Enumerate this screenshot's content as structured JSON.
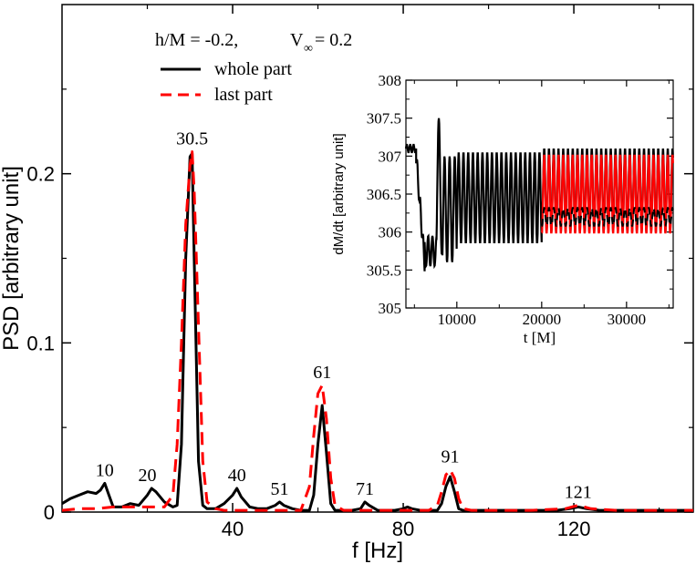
{
  "chart_data": [
    {
      "type": "line",
      "xlabel": "f [Hz]",
      "ylabel": "PSD [arbitrary unit]",
      "xlim": [
        0,
        148
      ],
      "ylim": [
        0,
        0.3
      ],
      "xticks": [
        40,
        80,
        120
      ],
      "yticks": [
        0,
        0.1,
        0.2
      ],
      "ytick_labels": [
        "0",
        "0.1",
        "0.2"
      ],
      "annotation": {
        "h_text": "h/M = -0.2,",
        "v_text": "V",
        "v_sub": "∞",
        "v_value": " = 0.2"
      },
      "legend": {
        "position": "top-left"
      },
      "series": [
        {
          "name": "whole part",
          "color": "#000000",
          "style": "solid",
          "x": [
            0,
            2,
            4,
            6,
            8,
            9,
            10,
            11,
            12,
            14,
            16,
            18,
            20,
            21,
            22,
            24,
            26,
            27,
            28,
            29,
            30,
            30.5,
            31,
            32,
            33,
            34,
            36,
            38,
            40,
            41,
            42,
            44,
            46,
            48,
            50,
            51,
            52,
            54,
            56,
            58,
            59,
            60,
            61,
            62,
            63,
            64,
            66,
            68,
            70,
            71,
            72,
            74,
            76,
            78,
            80,
            81,
            82,
            84,
            86,
            88,
            89,
            90,
            91,
            92,
            93,
            94,
            96,
            100,
            104,
            108,
            112,
            116,
            119,
            121,
            123,
            126,
            130,
            135,
            140,
            145,
            148
          ],
          "y": [
            0.005,
            0.008,
            0.01,
            0.012,
            0.011,
            0.013,
            0.017,
            0.01,
            0.003,
            0.003,
            0.005,
            0.004,
            0.01,
            0.014,
            0.012,
            0.006,
            0.003,
            0.004,
            0.04,
            0.15,
            0.21,
            0.212,
            0.15,
            0.03,
            0.004,
            0.002,
            0.002,
            0.005,
            0.01,
            0.014,
            0.009,
            0.003,
            0.002,
            0.002,
            0.004,
            0.006,
            0.004,
            0.002,
            0.001,
            0.001,
            0.01,
            0.04,
            0.063,
            0.035,
            0.005,
            0.001,
            0.001,
            0.001,
            0.002,
            0.006,
            0.004,
            0.001,
            0.001,
            0.001,
            0.002,
            0.003,
            0.002,
            0.001,
            0.001,
            0.001,
            0.005,
            0.015,
            0.021,
            0.012,
            0.002,
            0.001,
            0.001,
            0.001,
            0.001,
            0.001,
            0.001,
            0.001,
            0.002,
            0.003,
            0.002,
            0.001,
            0.001,
            0.001,
            0.001,
            0.001,
            0.001
          ]
        },
        {
          "name": "last part",
          "color": "#ff0000",
          "style": "dashed",
          "x": [
            0,
            4,
            8,
            12,
            16,
            20,
            24,
            26,
            27,
            28,
            29,
            30,
            30.5,
            31,
            32,
            33,
            34,
            36,
            38,
            40,
            44,
            48,
            52,
            56,
            58,
            59,
            60,
            61,
            62,
            63,
            64,
            66,
            70,
            74,
            78,
            82,
            86,
            88,
            89,
            90,
            91,
            92,
            93,
            94,
            96,
            100,
            110,
            118,
            121,
            124,
            130,
            140,
            148
          ],
          "y": [
            0.001,
            0.002,
            0.002,
            0.003,
            0.003,
            0.003,
            0.003,
            0.01,
            0.04,
            0.1,
            0.17,
            0.205,
            0.213,
            0.19,
            0.11,
            0.03,
            0.006,
            0.002,
            0.001,
            0.001,
            0.001,
            0.001,
            0.001,
            0.001,
            0.015,
            0.045,
            0.07,
            0.075,
            0.055,
            0.02,
            0.004,
            0.001,
            0.001,
            0.001,
            0.001,
            0.001,
            0.001,
            0.004,
            0.012,
            0.022,
            0.025,
            0.02,
            0.008,
            0.002,
            0.001,
            0.001,
            0.001,
            0.002,
            0.004,
            0.002,
            0.001,
            0.001,
            0.001
          ]
        }
      ],
      "peak_labels": [
        {
          "text": "10",
          "x": 10,
          "y": 0.017
        },
        {
          "text": "20",
          "x": 20,
          "y": 0.014
        },
        {
          "text": "30.5",
          "x": 30.5,
          "y": 0.213
        },
        {
          "text": "40",
          "x": 41,
          "y": 0.014
        },
        {
          "text": "51",
          "x": 51,
          "y": 0.006
        },
        {
          "text": "61",
          "x": 61,
          "y": 0.075
        },
        {
          "text": "71",
          "x": 71,
          "y": 0.006
        },
        {
          "text": "91",
          "x": 91,
          "y": 0.025
        },
        {
          "text": "121",
          "x": 121,
          "y": 0.004
        }
      ]
    },
    {
      "type": "line",
      "xlabel": "t [M]",
      "ylabel": "dM/dt [arbitrary unit]",
      "xlim": [
        4000,
        35500
      ],
      "ylim": [
        305,
        308
      ],
      "xticks": [
        10000,
        20000,
        30000
      ],
      "yticks": [
        305,
        305.5,
        306,
        306.5,
        307,
        307.5,
        308
      ],
      "ytick_labels": [
        "305",
        "305.5",
        "306",
        "306.5",
        "307",
        "307.5",
        "308"
      ],
      "series": [
        {
          "name": "whole part",
          "color": "#000000",
          "t_range": [
            4000,
            35500
          ],
          "segments": [
            {
              "t": [
                4000,
                5200
              ],
              "mean": 307.1,
              "amp": 0.05,
              "period": 400
            },
            {
              "t": [
                5200,
                6200
              ],
              "mean_from": 307.0,
              "mean_to": 305.6,
              "amp": 0.12,
              "period": 350
            },
            {
              "t": [
                6200,
                7600
              ],
              "mean": 305.75,
              "amp": 0.2,
              "period": 500
            },
            {
              "t": [
                7600,
                8300
              ],
              "mean": 306.6,
              "amp": 0.9,
              "period": 700
            },
            {
              "t": [
                8300,
                10000
              ],
              "mean": 306.3,
              "amp": 0.7,
              "period": 600
            },
            {
              "t": [
                10000,
                20000
              ],
              "mean": 306.45,
              "amp": 0.6,
              "period": 560
            },
            {
              "t": [
                20000,
                35500
              ],
              "mean": 306.55,
              "amp": 0.55,
              "period": 560
            }
          ]
        },
        {
          "name": "last part",
          "color": "#ff0000",
          "t_range": [
            20000,
            35500
          ],
          "segments": [
            {
              "t": [
                20000,
                35500
              ],
              "mean": 306.5,
              "amp": 0.52,
              "period": 560
            }
          ]
        }
      ]
    }
  ]
}
